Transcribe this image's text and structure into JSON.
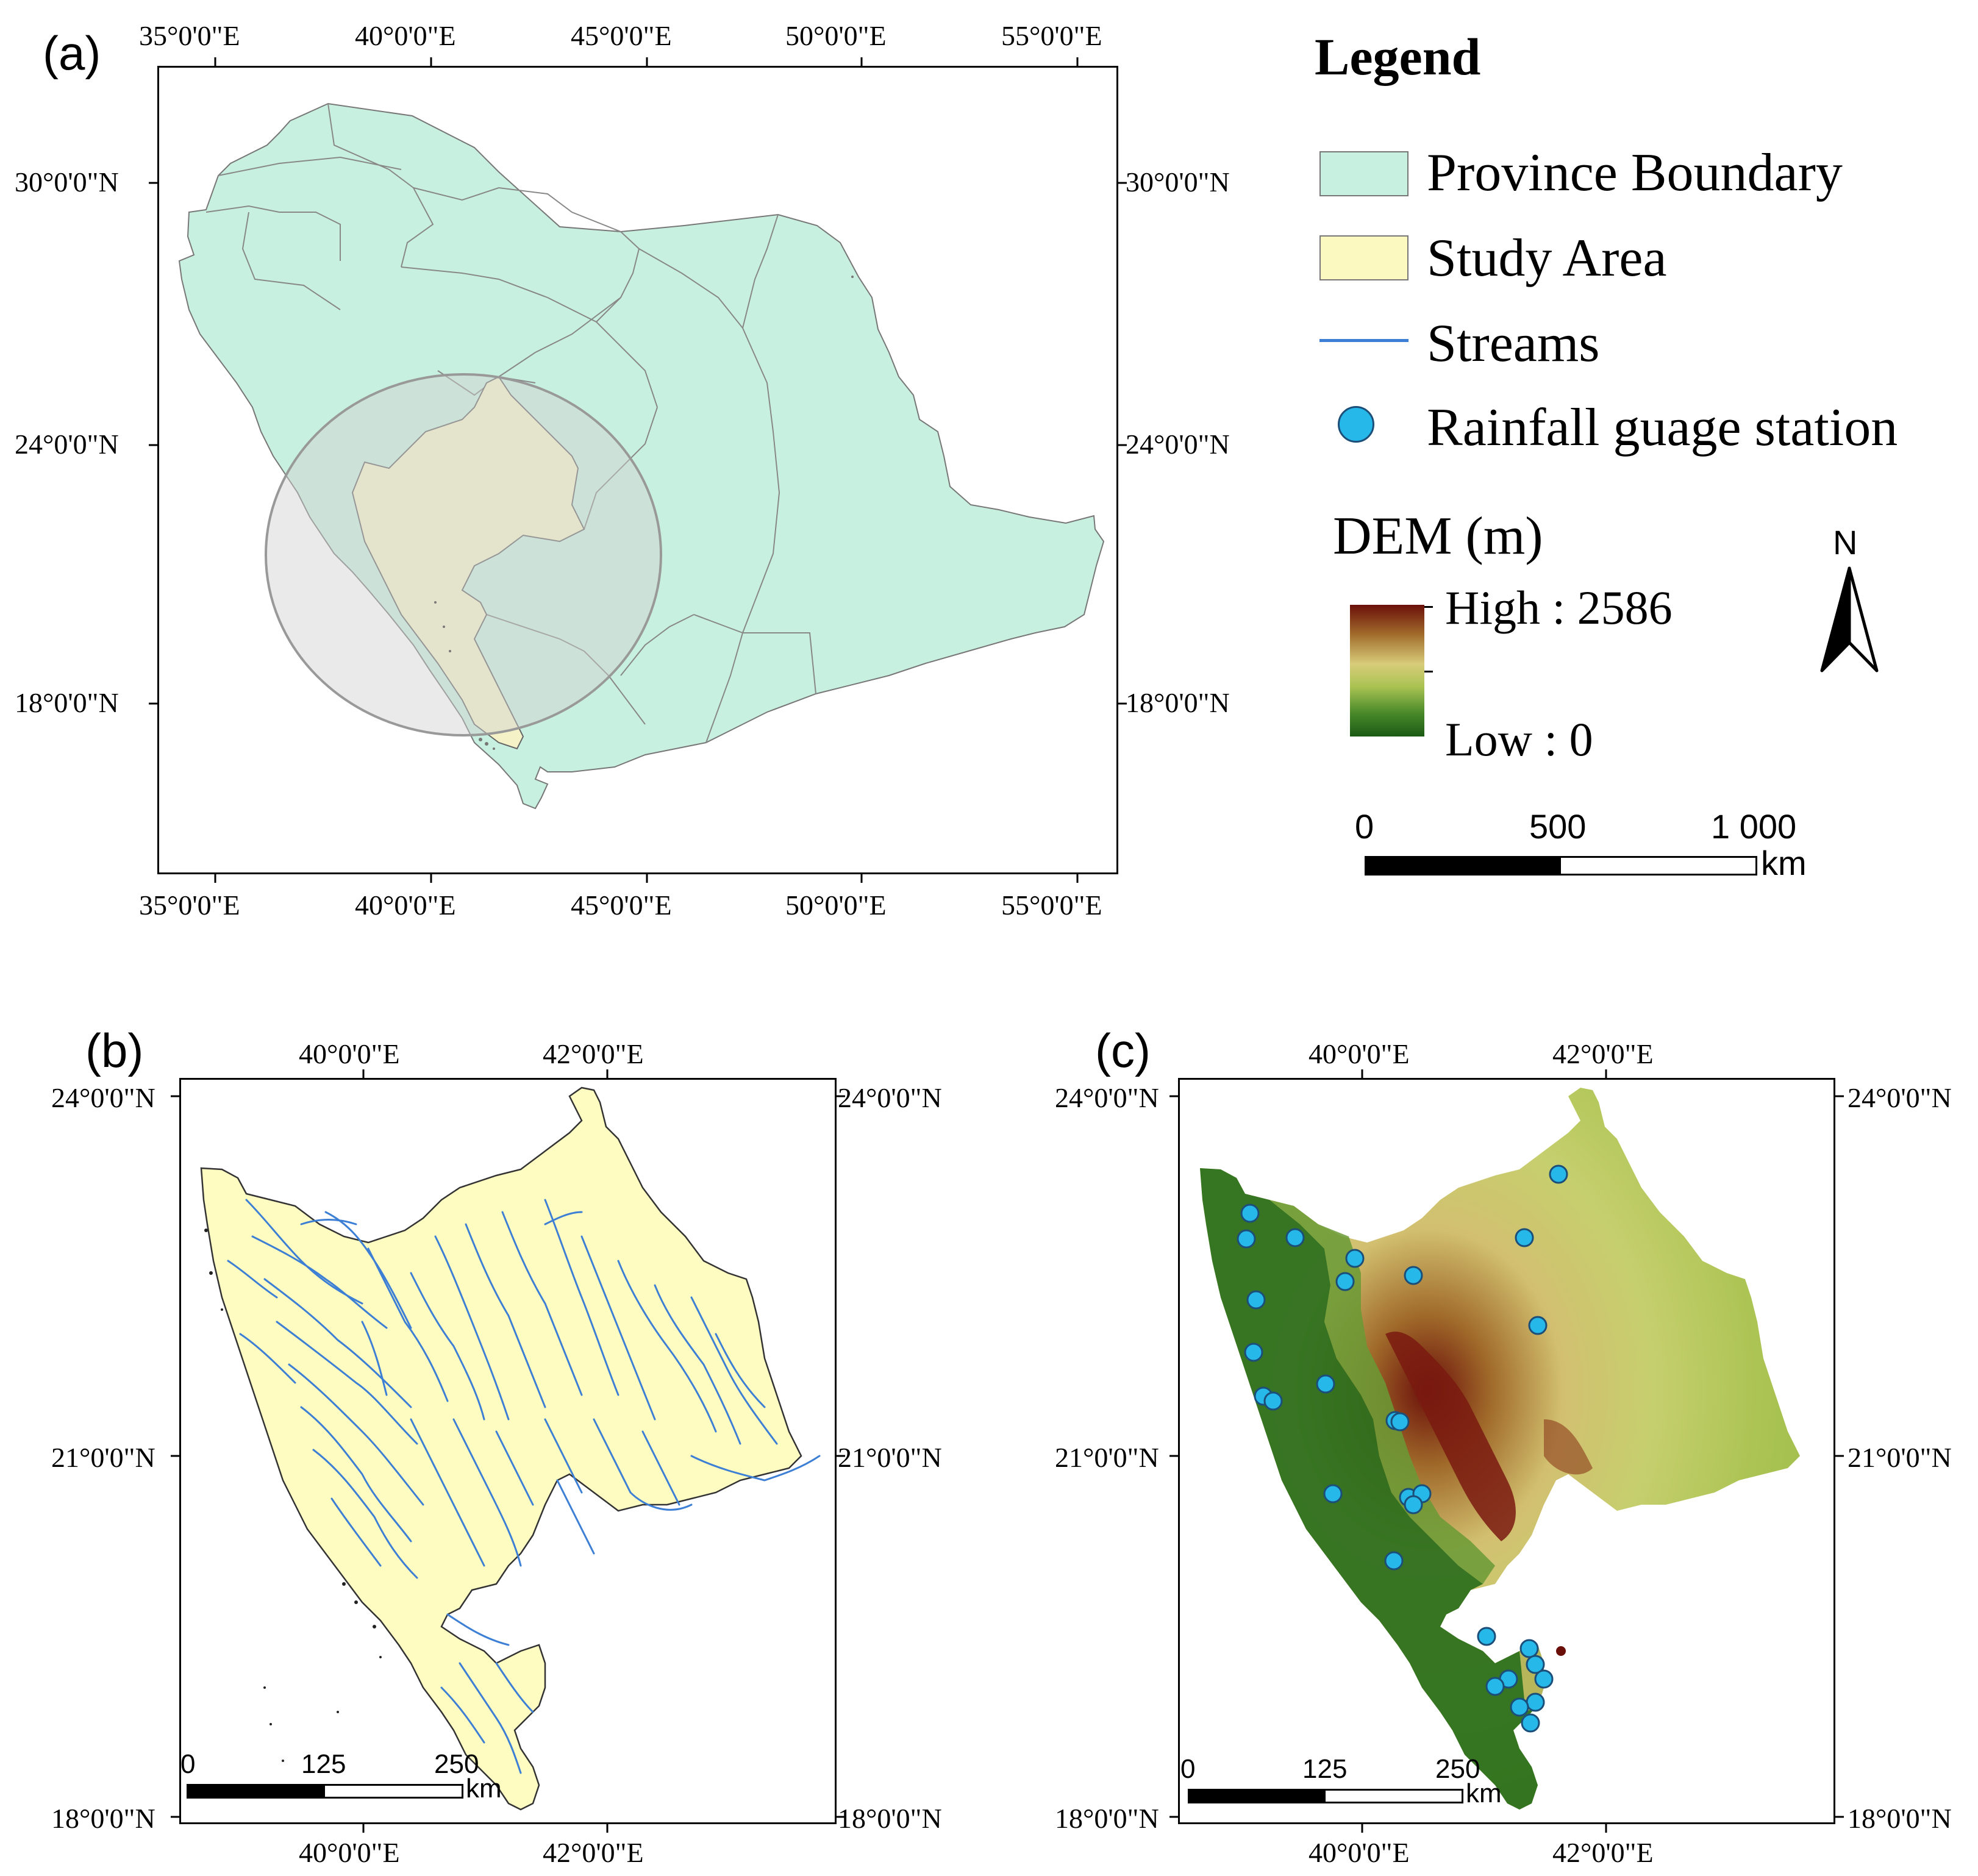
{
  "panels": {
    "a": {
      "label": "(a)",
      "lon_ticks": [
        "35°0'0\"E",
        "40°0'0\"E",
        "45°0'0\"E",
        "50°0'0\"E",
        "55°0'0\"E"
      ],
      "lat_ticks": [
        "30°0'0\"N",
        "24°0'0\"N",
        "18°0'0\"N"
      ]
    },
    "b": {
      "label": "(b)",
      "lon_ticks": [
        "40°0'0\"E",
        "42°0'0\"E"
      ],
      "lat_ticks": [
        "24°0'0\"N",
        "21°0'0\"N",
        "18°0'0\"N"
      ],
      "scale_bar": {
        "ticks": [
          "0",
          "125",
          "250"
        ],
        "unit": "km"
      }
    },
    "c": {
      "label": "(c)",
      "lon_ticks": [
        "40°0'0\"E",
        "42°0'0\"E"
      ],
      "lat_ticks": [
        "24°0'0\"N",
        "21°0'0\"N",
        "18°0'0\"N"
      ],
      "scale_bar": {
        "ticks": [
          "0",
          "125",
          "250"
        ],
        "unit": "km"
      }
    }
  },
  "legend": {
    "title": "Legend",
    "items": [
      {
        "label": "Province Boundary",
        "color": "#c8f0e0"
      },
      {
        "label": "Study Area",
        "color": "#fbf9c0"
      },
      {
        "label": "Streams",
        "color": "#3c7fd4"
      },
      {
        "label": "Rainfall guage station",
        "color": "#27b8ea"
      }
    ],
    "dem": {
      "title": "DEM (m)",
      "high_label": "High : 2586",
      "low_label": "Low : 0",
      "gradient": [
        "#6b0f0a",
        "#a06a2a",
        "#d8cc7a",
        "#aac352",
        "#4a8a2a",
        "#1a5a15"
      ]
    },
    "north_arrow": {
      "label": "N"
    },
    "scale_bar": {
      "ticks": [
        "0",
        "500",
        "1 000"
      ],
      "unit": "km"
    }
  }
}
